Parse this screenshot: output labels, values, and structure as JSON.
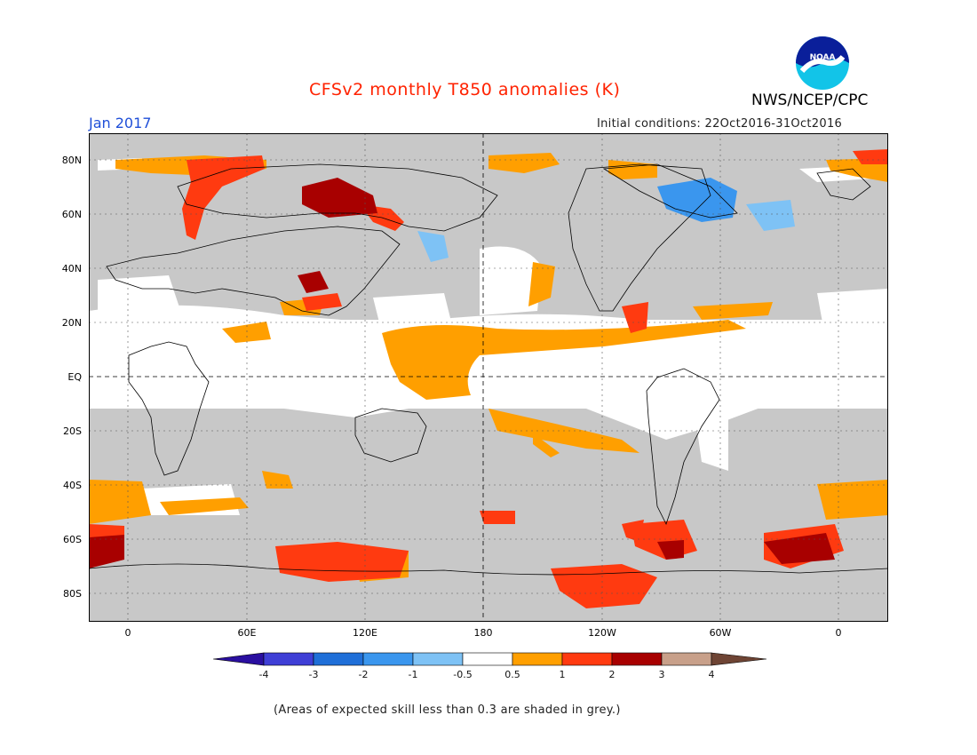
{
  "header": {
    "title": "CFSv2 monthly T850 anomalies (K)",
    "month": "Jan 2017",
    "initial_conditions": "Initial conditions: 22Oct2016-31Oct2016",
    "agency": "NWS/NCEP/CPC",
    "logo_text": "NOAA"
  },
  "axes": {
    "y_labels": [
      "80N",
      "60N",
      "40N",
      "20N",
      "EQ",
      "20S",
      "40S",
      "60S",
      "80S"
    ],
    "x_labels": [
      "0",
      "60E",
      "120E",
      "180",
      "120W",
      "60W",
      "0"
    ]
  },
  "colorbar": {
    "labels": [
      "-4",
      "-3",
      "-2",
      "-1",
      "-0.5",
      "0.5",
      "1",
      "2",
      "3",
      "4"
    ],
    "colors": [
      "#2a0fa0",
      "#3f3fd6",
      "#1f6fd8",
      "#3a96ee",
      "#7ec2f5",
      "#ffffff",
      "#ff9f00",
      "#ff3a10",
      "#a80000",
      "#c8a08a",
      "#6e4434"
    ]
  },
  "footnote": "(Areas of expected skill less than 0.3 are shaded in grey.)",
  "colors": {
    "grey_skill": "#c8c8c8",
    "neutral": "#ffffff",
    "warm_0_5_1": "#ff9f00",
    "warm_1_2": "#ff3a10",
    "warm_2_3": "#a80000",
    "cool_m1_m0_5": "#7ec2f5",
    "cool_m2_m1": "#3a96ee"
  }
}
